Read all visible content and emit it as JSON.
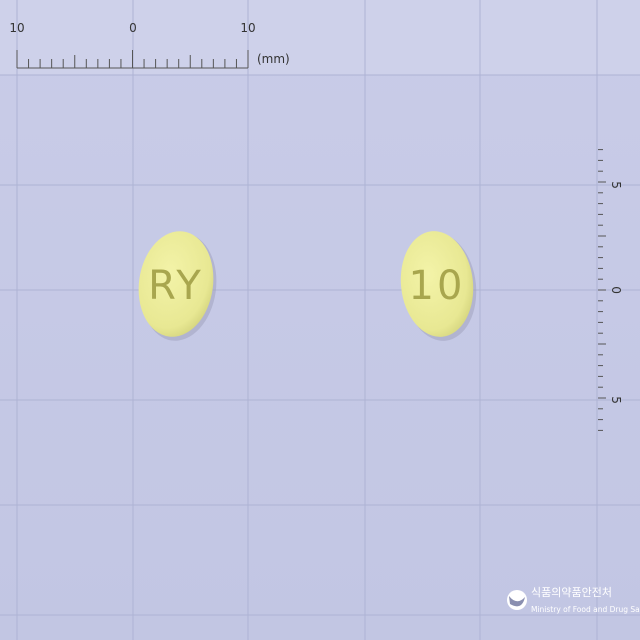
{
  "ruler_top": {
    "labels": [
      "10",
      "0",
      "10"
    ],
    "unit": "(mm)"
  },
  "ruler_right": {
    "labels": [
      "5",
      "0",
      "5"
    ]
  },
  "pills": [
    {
      "imprint": "RY"
    },
    {
      "imprint": "10"
    }
  ],
  "logo": {
    "korean": "식품의약품안전처",
    "english": "Ministry of Food and Drug Safety"
  }
}
